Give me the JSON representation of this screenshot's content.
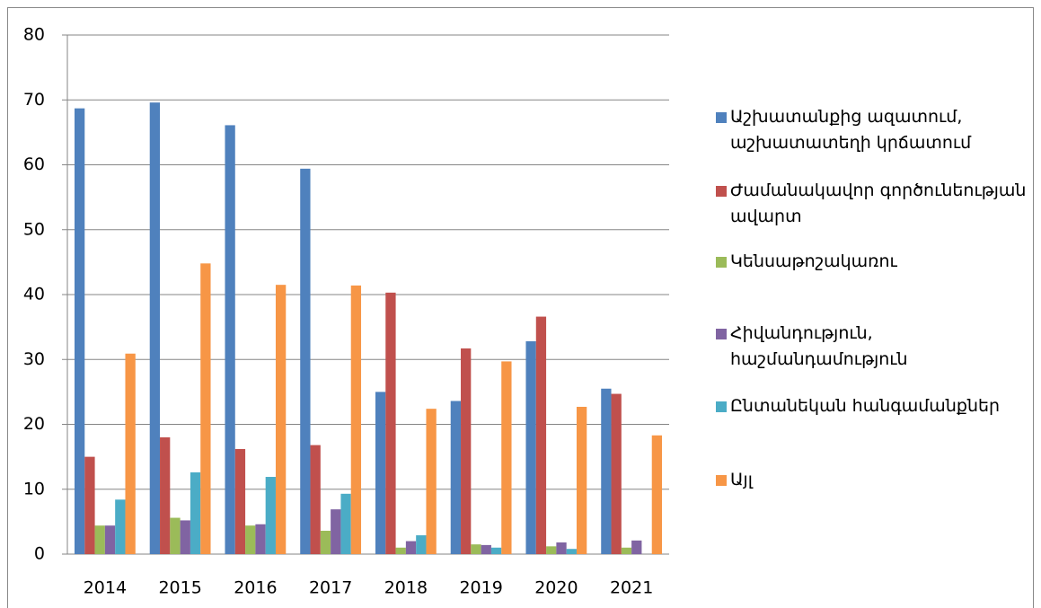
{
  "chart_data": {
    "type": "bar",
    "categories": [
      "2014",
      "2015",
      "2016",
      "2017",
      "2018",
      "2019",
      "2020",
      "2021"
    ],
    "series": [
      {
        "name": "Աշխատանքից ազատում, աշխատատեղի կրճատում",
        "color": "#4f81bd",
        "values": [
          68.7,
          69.6,
          66.1,
          59.4,
          25,
          23.6,
          32.8,
          25.5
        ]
      },
      {
        "name": "Ժամանակավոր գործունեության ավարտ",
        "color": "#c0504d",
        "values": [
          15,
          18,
          16.2,
          16.8,
          40.3,
          31.7,
          36.6,
          24.7
        ]
      },
      {
        "name": "Կենսաթոշակառու",
        "color": "#9bbb59",
        "values": [
          4.4,
          5.6,
          4.4,
          3.6,
          1,
          1.5,
          1.2,
          1
        ]
      },
      {
        "name": "Հիվանդություն, հաշմանդամություն",
        "color": "#8064a2",
        "values": [
          4.4,
          5.2,
          4.6,
          6.9,
          2,
          1.4,
          1.8,
          2.1
        ]
      },
      {
        "name": "Ընտանեկան հանգամանքներ",
        "color": "#4bacc6",
        "values": [
          8.4,
          12.6,
          11.9,
          9.3,
          2.9,
          1,
          0.8,
          0
        ]
      },
      {
        "name": "Այլ",
        "color": "#f79646",
        "values": [
          30.9,
          44.8,
          41.5,
          41.4,
          22.4,
          29.7,
          22.7,
          18.3
        ]
      }
    ],
    "ylim": [
      0,
      80
    ],
    "yticks": [
      0,
      10,
      20,
      30,
      40,
      50,
      60,
      70,
      80
    ],
    "grid": true,
    "legend": "right"
  }
}
